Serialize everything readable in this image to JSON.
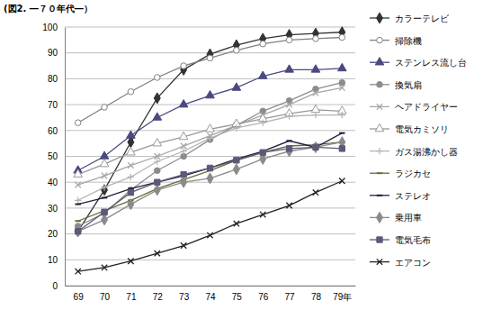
{
  "chart_data": {
    "type": "line",
    "title": "(図2. ―７０年代―）",
    "categories": [
      "69",
      "70",
      "71",
      "72",
      "73",
      "74",
      "75",
      "76",
      "77",
      "78",
      "79年"
    ],
    "ylim": [
      0,
      100
    ],
    "yticks": [
      0,
      10,
      20,
      30,
      40,
      50,
      60,
      70,
      80,
      90,
      100
    ],
    "grid": true,
    "legend": "right",
    "series": [
      {
        "name": "カラーテレビ",
        "color": "#333333",
        "marker": "diamond",
        "values": [
          21,
          37,
          55.5,
          72.5,
          83.5,
          89.5,
          93,
          95.5,
          97,
          97.5,
          98
        ]
      },
      {
        "name": "掃除機",
        "color": "#808080",
        "marker": "circle-open",
        "values": [
          63,
          69,
          75,
          80.5,
          85,
          88,
          91,
          93.5,
          95,
          95.5,
          96
        ]
      },
      {
        "name": "ステンレス流し台",
        "color": "#4a4a80",
        "marker": "triangle",
        "values": [
          44.5,
          50,
          58,
          65,
          70,
          73.5,
          76.5,
          81,
          83.5,
          83.5,
          84
        ]
      },
      {
        "name": "換気扇",
        "color": "#8c8c8c",
        "marker": "circle",
        "values": [
          23,
          28,
          37,
          44.5,
          50,
          56.5,
          62,
          67.5,
          71.5,
          76,
          78.5
        ]
      },
      {
        "name": "ヘアドライヤー",
        "color": "#a6a6a6",
        "marker": "x",
        "values": [
          39,
          42.5,
          46.5,
          50,
          54,
          58,
          62,
          66,
          70,
          74.5,
          76.5
        ]
      },
      {
        "name": "電気カミソリ",
        "color": "#999999",
        "marker": "triangle-open",
        "values": [
          43,
          47,
          51.5,
          55,
          57.5,
          60.5,
          62.5,
          64.5,
          66.5,
          68,
          67.5
        ]
      },
      {
        "name": "ガス湯沸かし器",
        "color": "#b3b3b3",
        "marker": "plus",
        "values": [
          33,
          38,
          42,
          48,
          52,
          57,
          61,
          63,
          65.5,
          66,
          66
        ]
      },
      {
        "name": "ラジカセ",
        "color": "#6b6b3a",
        "marker": "dash",
        "values": [
          25,
          29,
          33,
          37.5,
          41,
          44.5,
          48.5,
          51.5,
          54,
          54.5,
          55.5
        ]
      },
      {
        "name": "ステレオ",
        "color": "#1f1f3f",
        "marker": "dash",
        "values": [
          31.5,
          34,
          37.5,
          40,
          42.5,
          45.5,
          49,
          52,
          56,
          53.5,
          59
        ]
      },
      {
        "name": "乗用車",
        "color": "#8a8a8a",
        "marker": "diamond",
        "values": [
          21,
          25.5,
          31.5,
          37,
          40,
          41.5,
          45,
          49,
          52,
          53.5,
          55.5
        ]
      },
      {
        "name": "電気毛布",
        "color": "#5a5a78",
        "marker": "square",
        "values": [
          21,
          28.5,
          36,
          40,
          43,
          45.5,
          48.5,
          51.5,
          53,
          53.5,
          53
        ]
      },
      {
        "name": "エアコン",
        "color": "#222222",
        "marker": "x",
        "values": [
          5.5,
          7,
          9.5,
          12.5,
          15.5,
          19.5,
          24,
          27.5,
          31,
          36,
          40.5
        ]
      }
    ]
  }
}
